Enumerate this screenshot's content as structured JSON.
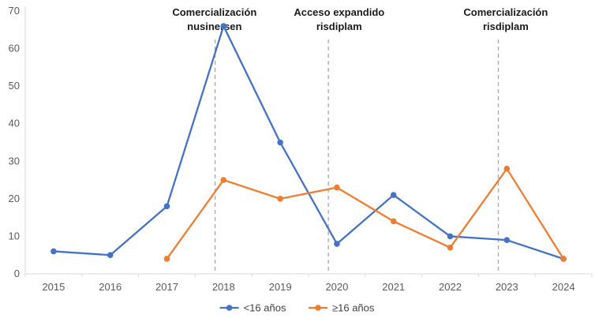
{
  "chart_data": {
    "type": "line",
    "title": "",
    "xlabel": "",
    "ylabel": "",
    "ylim": [
      0,
      70
    ],
    "yticks": [
      0,
      10,
      20,
      30,
      40,
      50,
      60,
      70
    ],
    "x_categories": [
      2015,
      2016,
      2017,
      2018,
      2019,
      2020,
      2021,
      2022,
      2023,
      2024
    ],
    "grid": false,
    "legend_position": "bottom",
    "series": [
      {
        "name": "<16 años",
        "color": "#4472c4",
        "x": [
          2015,
          2016,
          2017,
          2018,
          2019,
          2020,
          2021,
          2022,
          2023,
          2024
        ],
        "values": [
          6,
          5,
          18,
          66,
          35,
          8,
          21,
          10,
          9,
          4
        ]
      },
      {
        "name": "≥16 años",
        "color": "#ed7d31",
        "x": [
          2017,
          2018,
          2019,
          2020,
          2021,
          2022,
          2023,
          2024
        ],
        "values": [
          4,
          25,
          20,
          23,
          14,
          7,
          28,
          4
        ]
      }
    ],
    "annotations": [
      {
        "text_lines": [
          "Comercialización",
          "nusinersen"
        ],
        "line_x": 2017.85,
        "label_x": 2017.84
      },
      {
        "text_lines": [
          "Acceso expandido",
          "risdiplam"
        ],
        "line_x": 2019.85,
        "label_x": 2020.04
      },
      {
        "text_lines": [
          "Comercialización",
          "risdiplam"
        ],
        "line_x": 2022.85,
        "label_x": 2022.98
      }
    ],
    "colors": {
      "axis_line": "#d9d9d9",
      "dashed_line": "#a6a6a6",
      "tick_text": "#595959",
      "annotation_text": "#1a1a1a"
    }
  }
}
